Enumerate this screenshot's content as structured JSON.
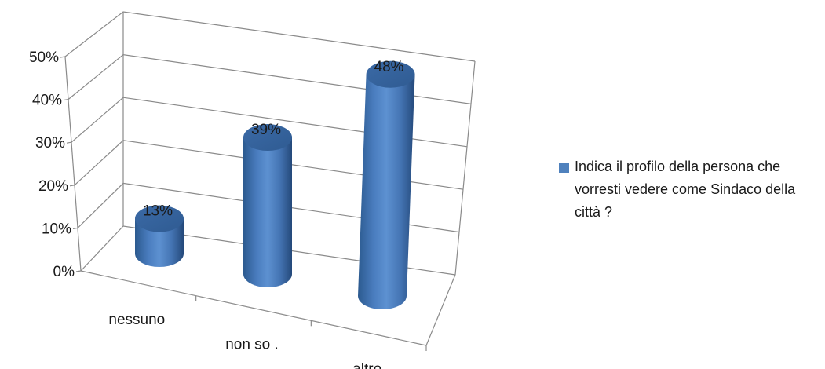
{
  "chart_data": {
    "type": "bar",
    "style": "3d-cylinder",
    "categories": [
      "nessuno",
      "non so .",
      "altro"
    ],
    "series": [
      {
        "name": "Indica il profilo della persona che vorresti vedere come Sindaco della città ?",
        "values": [
          13,
          39,
          48
        ],
        "data_labels": [
          "13%",
          "39%",
          "48%"
        ],
        "color": "#4f81bd"
      }
    ],
    "y_ticks": [
      "0%",
      "10%",
      "20%",
      "30%",
      "40%",
      "50%"
    ],
    "ylim": [
      0,
      50
    ],
    "y_unit": "%",
    "grid": true,
    "legend_position": "right",
    "title": "",
    "xlabel": "",
    "ylabel": ""
  }
}
